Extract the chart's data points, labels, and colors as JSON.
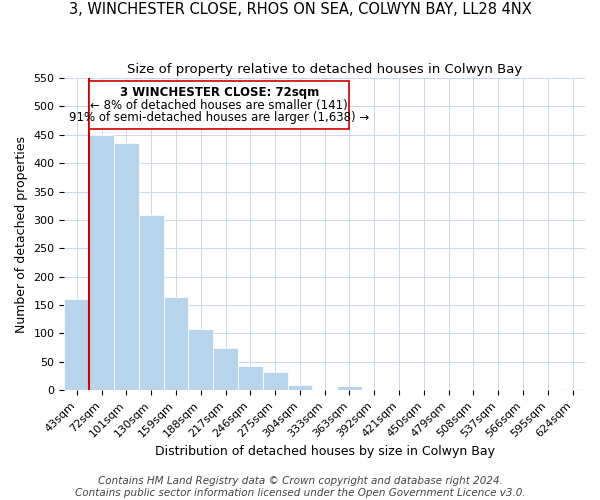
{
  "title": "3, WINCHESTER CLOSE, RHOS ON SEA, COLWYN BAY, LL28 4NX",
  "subtitle": "Size of property relative to detached houses in Colwyn Bay",
  "xlabel": "Distribution of detached houses by size in Colwyn Bay",
  "ylabel": "Number of detached properties",
  "footer_lines": [
    "Contains HM Land Registry data © Crown copyright and database right 2024.",
    "Contains public sector information licensed under the Open Government Licence v3.0."
  ],
  "bin_labels": [
    "43sqm",
    "72sqm",
    "101sqm",
    "130sqm",
    "159sqm",
    "188sqm",
    "217sqm",
    "246sqm",
    "275sqm",
    "304sqm",
    "333sqm",
    "363sqm",
    "392sqm",
    "421sqm",
    "450sqm",
    "479sqm",
    "508sqm",
    "537sqm",
    "566sqm",
    "595sqm",
    "624sqm"
  ],
  "bar_values": [
    160,
    450,
    435,
    308,
    165,
    108,
    74,
    43,
    33,
    10,
    0,
    7,
    0,
    0,
    0,
    0,
    0,
    0,
    0,
    0,
    3
  ],
  "bar_color": "#b8d4ea",
  "marker_color": "#cc0000",
  "highlight_bar_index": 1,
  "ylim": [
    0,
    550
  ],
  "yticks": [
    0,
    50,
    100,
    150,
    200,
    250,
    300,
    350,
    400,
    450,
    500,
    550
  ],
  "annotation_text_line1": "3 WINCHESTER CLOSE: 72sqm",
  "annotation_text_line2": "← 8% of detached houses are smaller (141)",
  "annotation_text_line3": "91% of semi-detached houses are larger (1,638) →",
  "annotation_fontsize": 8.5,
  "title_fontsize": 10.5,
  "subtitle_fontsize": 9.5,
  "xlabel_fontsize": 9,
  "ylabel_fontsize": 9,
  "tick_fontsize": 8,
  "footer_fontsize": 7.5
}
